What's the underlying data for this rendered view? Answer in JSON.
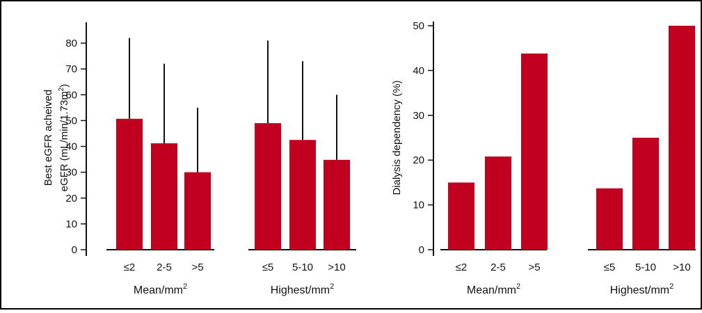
{
  "colors": {
    "bar": "#c0001e",
    "axis": "#111111",
    "frame": "#000000"
  },
  "chart_data": [
    {
      "type": "bar",
      "ylabel_lines": [
        "Best eGFR acheived",
        "eGFR (mL/min/1.73m²)"
      ],
      "ylim": [
        0,
        85
      ],
      "yticks": [
        0,
        10,
        20,
        30,
        40,
        50,
        60,
        70,
        80
      ],
      "grid": false,
      "groups": [
        {
          "label": "Mean/mm²",
          "categories": [
            "≤2",
            "2-5",
            ">5"
          ],
          "values": [
            50.7,
            41.2,
            30
          ],
          "error_upper": [
            82,
            72,
            55
          ]
        },
        {
          "label": "Highest/mm²",
          "categories": [
            "≤5",
            "5-10",
            ">10"
          ],
          "values": [
            49,
            42.5,
            34.8
          ],
          "error_upper": [
            81,
            73,
            60
          ]
        }
      ]
    },
    {
      "type": "bar",
      "ylabel": "Dialysis dependency (%)",
      "ylim": [
        0,
        51
      ],
      "yticks": [
        0,
        10,
        20,
        30,
        40,
        50
      ],
      "grid": false,
      "groups": [
        {
          "label": "Mean/mm²",
          "categories": [
            "≤2",
            "2-5",
            ">5"
          ],
          "values": [
            15,
            20.8,
            43.8
          ]
        },
        {
          "label": "Highest/mm²",
          "categories": [
            "≤5",
            "5-10",
            ">10"
          ],
          "values": [
            13.7,
            25,
            50
          ]
        }
      ]
    }
  ]
}
